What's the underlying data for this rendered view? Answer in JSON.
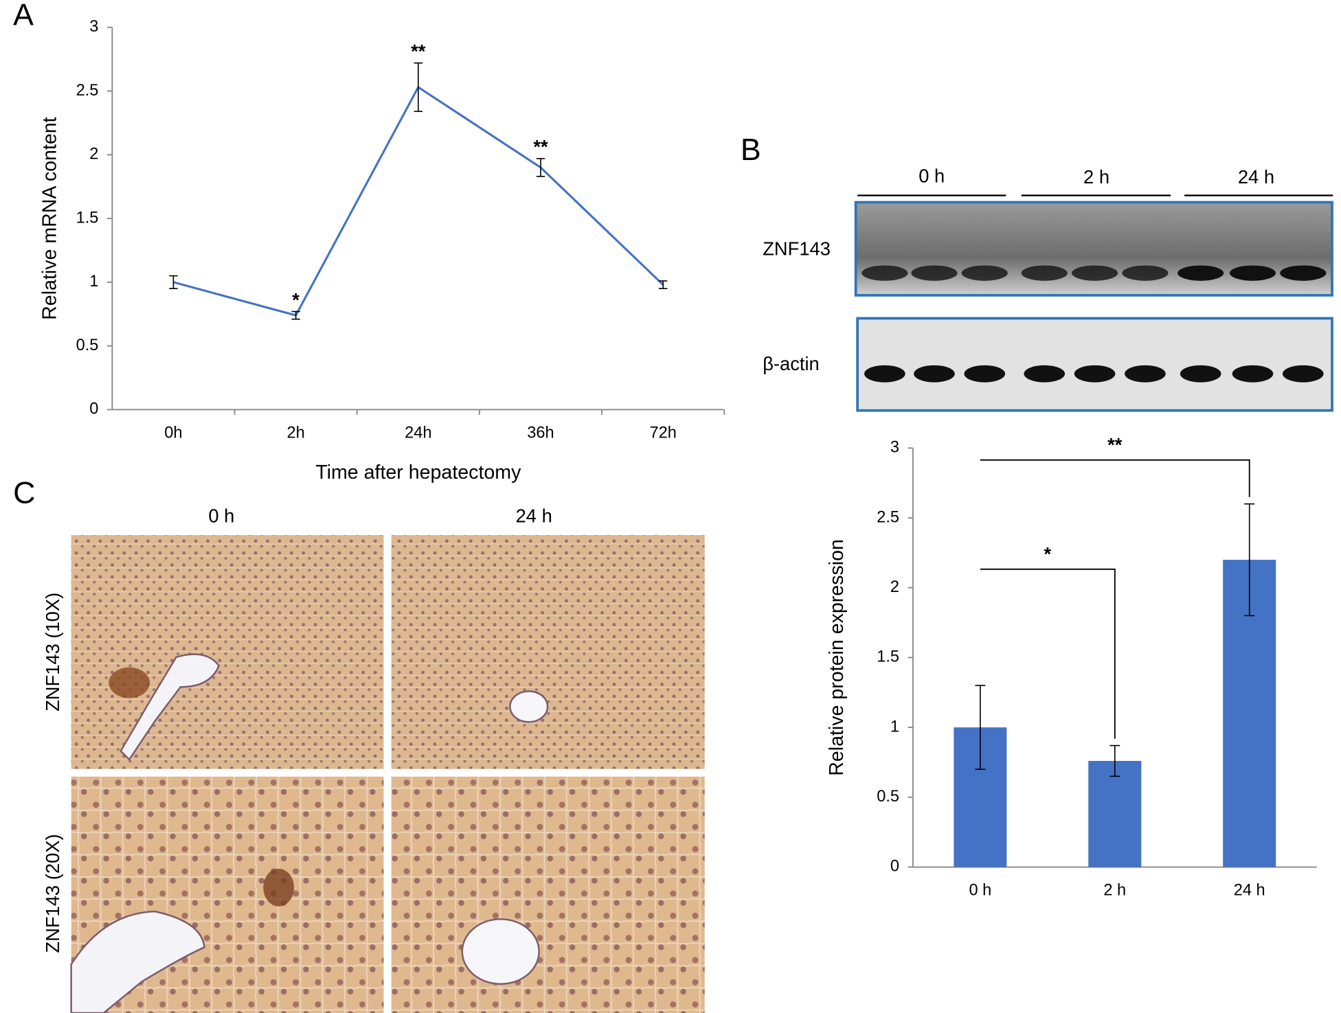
{
  "panel_labels": [
    "A",
    "B",
    "C"
  ],
  "chart_data": [
    {
      "type": "line",
      "categories": [
        "0h",
        "2h",
        "24h",
        "36h",
        "72h"
      ],
      "values": [
        1.0,
        0.74,
        2.53,
        1.9,
        0.98
      ],
      "errors": [
        0.05,
        0.03,
        0.19,
        0.07,
        0.03
      ],
      "color": "#4472c4",
      "ylim": [
        0,
        3
      ],
      "yticks": [
        0,
        0.5,
        1,
        1.5,
        2,
        2.5,
        3
      ],
      "ylabel": "Relative mRNA content",
      "xlabel": "Time after hepatectomy",
      "annotations": [
        {
          "index": 1,
          "text": "*"
        },
        {
          "index": 2,
          "text": "**"
        },
        {
          "index": 3,
          "text": "**"
        }
      ]
    },
    {
      "type": "bar",
      "categories": [
        "0 h",
        "2 h",
        "24 h"
      ],
      "values": [
        1.0,
        0.76,
        2.2
      ],
      "errors": [
        0.3,
        0.11,
        0.4
      ],
      "color": "#4472c4",
      "ylim": [
        0,
        3
      ],
      "yticks": [
        0,
        0.5,
        1,
        1.5,
        2,
        2.5,
        3
      ],
      "ylabel": "Relative protein expression",
      "brackets": [
        {
          "from": 0,
          "to": 1,
          "text": "*"
        },
        {
          "from": 0,
          "to": 2,
          "text": "**"
        }
      ]
    }
  ],
  "blot": {
    "lanes": [
      "0 h",
      "2 h",
      "24 h"
    ],
    "rows": [
      "ZNF143",
      "β-actin"
    ]
  },
  "histology": {
    "columns": [
      "0 h",
      "24 h"
    ],
    "rows": [
      "ZNF143 (10X)",
      "ZNF143 (20X)"
    ]
  }
}
